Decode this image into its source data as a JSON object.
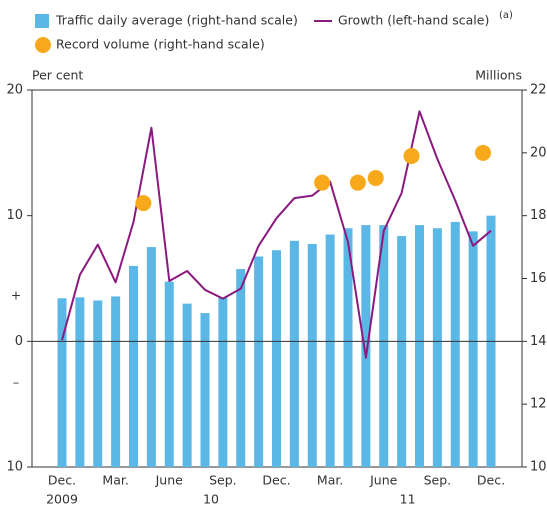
{
  "chart_data": {
    "type": "combo",
    "legend": "top-left",
    "y_label": "Per cent",
    "y2_label": "Millions",
    "annotations": [
      "+",
      "–"
    ],
    "categories": [
      "Dec.",
      null,
      null,
      "Mar.",
      null,
      null,
      "June",
      null,
      null,
      "Sep.",
      null,
      null,
      "Dec.",
      null,
      null,
      "Mar.",
      null,
      null,
      "June",
      null,
      null,
      "Sep.",
      null,
      null,
      "Dec."
    ],
    "year_labels": [
      "2009",
      null,
      null,
      null,
      null,
      null,
      null,
      null,
      "10",
      null,
      null,
      null,
      null,
      null,
      null,
      null,
      null,
      null,
      null,
      "11",
      null,
      null,
      null,
      null,
      null
    ],
    "ylim": [
      -10,
      20
    ],
    "yticks": [
      {
        "value": -10,
        "label": "10"
      },
      0,
      10,
      20
    ],
    "y2lim": [
      10,
      22
    ],
    "y2ticks": [
      10,
      12,
      14,
      16,
      18,
      20,
      22
    ],
    "series": [
      {
        "name": "Traffic daily average (right-hand scale)",
        "type": "bar",
        "axis": "y2",
        "color": "#5bb8e6",
        "values": [
          15.37,
          15.4,
          15.3,
          15.43,
          16.4,
          17.0,
          15.9,
          15.2,
          14.9,
          15.4,
          16.3,
          16.7,
          16.9,
          17.2,
          17.1,
          17.4,
          17.6,
          17.7,
          17.7,
          17.35,
          17.7,
          17.6,
          17.8,
          17.5,
          18.0
        ]
      },
      {
        "name": "Growth (left-hand scale)",
        "note": "(a)",
        "type": "line",
        "axis": "y",
        "color": "#8b1a7f",
        "values": [
          0.1,
          5.3,
          7.7,
          4.7,
          9.5,
          17.0,
          4.8,
          5.6,
          4.1,
          3.4,
          4.2,
          7.6,
          9.8,
          11.4,
          11.6,
          12.7,
          7.9,
          -1.3,
          8.8,
          11.8,
          18.3,
          14.5,
          11.2,
          7.6,
          8.8
        ]
      },
      {
        "name": "Record volume (right-hand scale)",
        "type": "dot",
        "axis": "y2",
        "color": "#f7a91b",
        "values": [
          null,
          null,
          null,
          null,
          null,
          18.4,
          null,
          null,
          null,
          null,
          null,
          null,
          null,
          null,
          null,
          19.05,
          null,
          19.05,
          19.2,
          null,
          19.9,
          null,
          null,
          null,
          20.0
        ]
      }
    ]
  }
}
